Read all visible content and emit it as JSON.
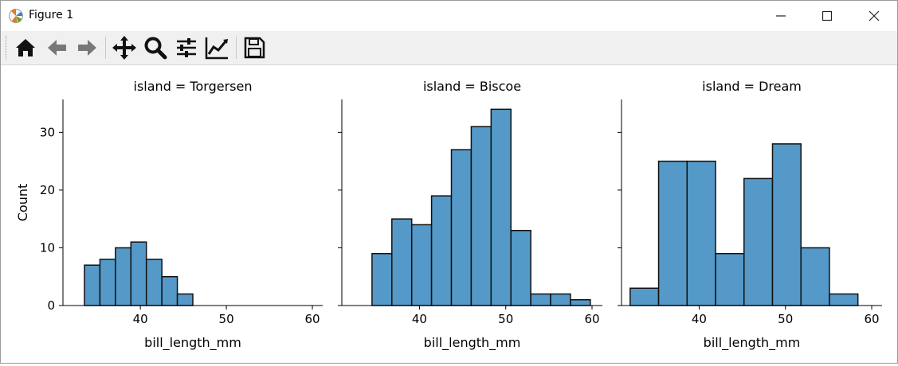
{
  "window": {
    "title": "Figure 1"
  },
  "toolbar": {
    "buttons": [
      {
        "name": "home",
        "icon": "home-icon"
      },
      {
        "name": "back",
        "icon": "arrow-left-icon"
      },
      {
        "name": "forward",
        "icon": "arrow-right-icon"
      },
      {
        "name": "pan",
        "icon": "move-icon"
      },
      {
        "name": "zoom",
        "icon": "magnifier-icon"
      },
      {
        "name": "configure-subplots",
        "icon": "sliders-icon"
      },
      {
        "name": "edit-axis",
        "icon": "line-chart-icon"
      },
      {
        "name": "save",
        "icon": "floppy-disk-icon"
      }
    ]
  },
  "colors": {
    "bar_fill": "#5499c7",
    "bar_edge": "#111111"
  },
  "chart_data": [
    {
      "type": "bar",
      "title": "island = Torgersen",
      "xlabel": "bill_length_mm",
      "ylabel": "Count",
      "xlim": [
        31,
        61.2
      ],
      "ylim": [
        0,
        35.7
      ],
      "xticks": [
        40,
        50,
        60
      ],
      "yticks": [
        0,
        10,
        20,
        30
      ],
      "bin_edges": [
        33.5,
        35.3,
        37.1,
        38.9,
        40.7,
        42.5,
        44.3,
        46.1
      ],
      "values": [
        7,
        8,
        10,
        11,
        8,
        5,
        2
      ]
    },
    {
      "type": "bar",
      "title": "island = Biscoe",
      "xlabel": "bill_length_mm",
      "ylabel": "",
      "xlim": [
        31,
        61.2
      ],
      "ylim": [
        0,
        35.7
      ],
      "xticks": [
        40,
        50,
        60
      ],
      "yticks": [
        0,
        10,
        20,
        30
      ],
      "bin_edges": [
        34.5,
        36.8,
        39.1,
        41.4,
        43.7,
        46.0,
        48.3,
        50.6,
        52.9,
        55.2,
        57.5,
        59.8
      ],
      "values": [
        9,
        15,
        14,
        19,
        27,
        31,
        34,
        13,
        2,
        2,
        1
      ]
    },
    {
      "type": "bar",
      "title": "island = Dream",
      "xlabel": "bill_length_mm",
      "ylabel": "",
      "xlim": [
        31,
        61.2
      ],
      "ylim": [
        0,
        35.7
      ],
      "xticks": [
        40,
        50,
        60
      ],
      "yticks": [
        0,
        10,
        20,
        30
      ],
      "bin_edges": [
        32.0,
        35.3,
        38.6,
        41.9,
        45.2,
        48.5,
        51.8,
        55.1,
        58.4
      ],
      "values": [
        3,
        25,
        25,
        9,
        22,
        28,
        10,
        2
      ]
    }
  ]
}
